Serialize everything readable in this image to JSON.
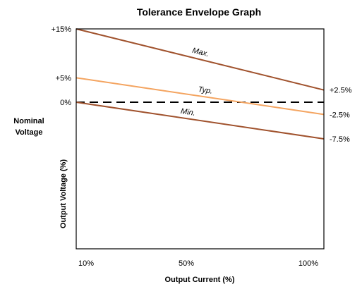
{
  "chart_data": {
    "type": "line",
    "title": "Tolerance Envelope Graph",
    "xlabel": "Output Current (%)",
    "ylabel": "Output Voltage (%)",
    "nominal_label": [
      "Nominal",
      "Voltage"
    ],
    "x_ticks": [
      {
        "value": 10,
        "label": "10%"
      },
      {
        "value": 50,
        "label": "50%"
      },
      {
        "value": 100,
        "label": "100%"
      }
    ],
    "y_ticks_left": [
      {
        "value": 15,
        "label": "+15%"
      },
      {
        "value": 5,
        "label": "+5%"
      },
      {
        "value": 0,
        "label": "0%"
      }
    ],
    "y_ticks_right": [
      {
        "value": 2.5,
        "label": "+2.5%"
      },
      {
        "value": -2.5,
        "label": "-2.5%"
      },
      {
        "value": -7.5,
        "label": "-7.5%"
      }
    ],
    "xlim": [
      10,
      100
    ],
    "ylim": [
      -30,
      15
    ],
    "grid": false,
    "series": [
      {
        "name": "Max.",
        "x": [
          10,
          100
        ],
        "y": [
          15,
          2.5
        ],
        "color": "#A0522D"
      },
      {
        "name": "Typ.",
        "x": [
          10,
          100
        ],
        "y": [
          5,
          -2.5
        ],
        "color": "#F4A460"
      },
      {
        "name": "Min.",
        "x": [
          10,
          100
        ],
        "y": [
          0,
          -7.5
        ],
        "color": "#A0522D"
      }
    ],
    "reference_line": {
      "y": 0,
      "style": "dashed",
      "color": "#000000"
    }
  }
}
